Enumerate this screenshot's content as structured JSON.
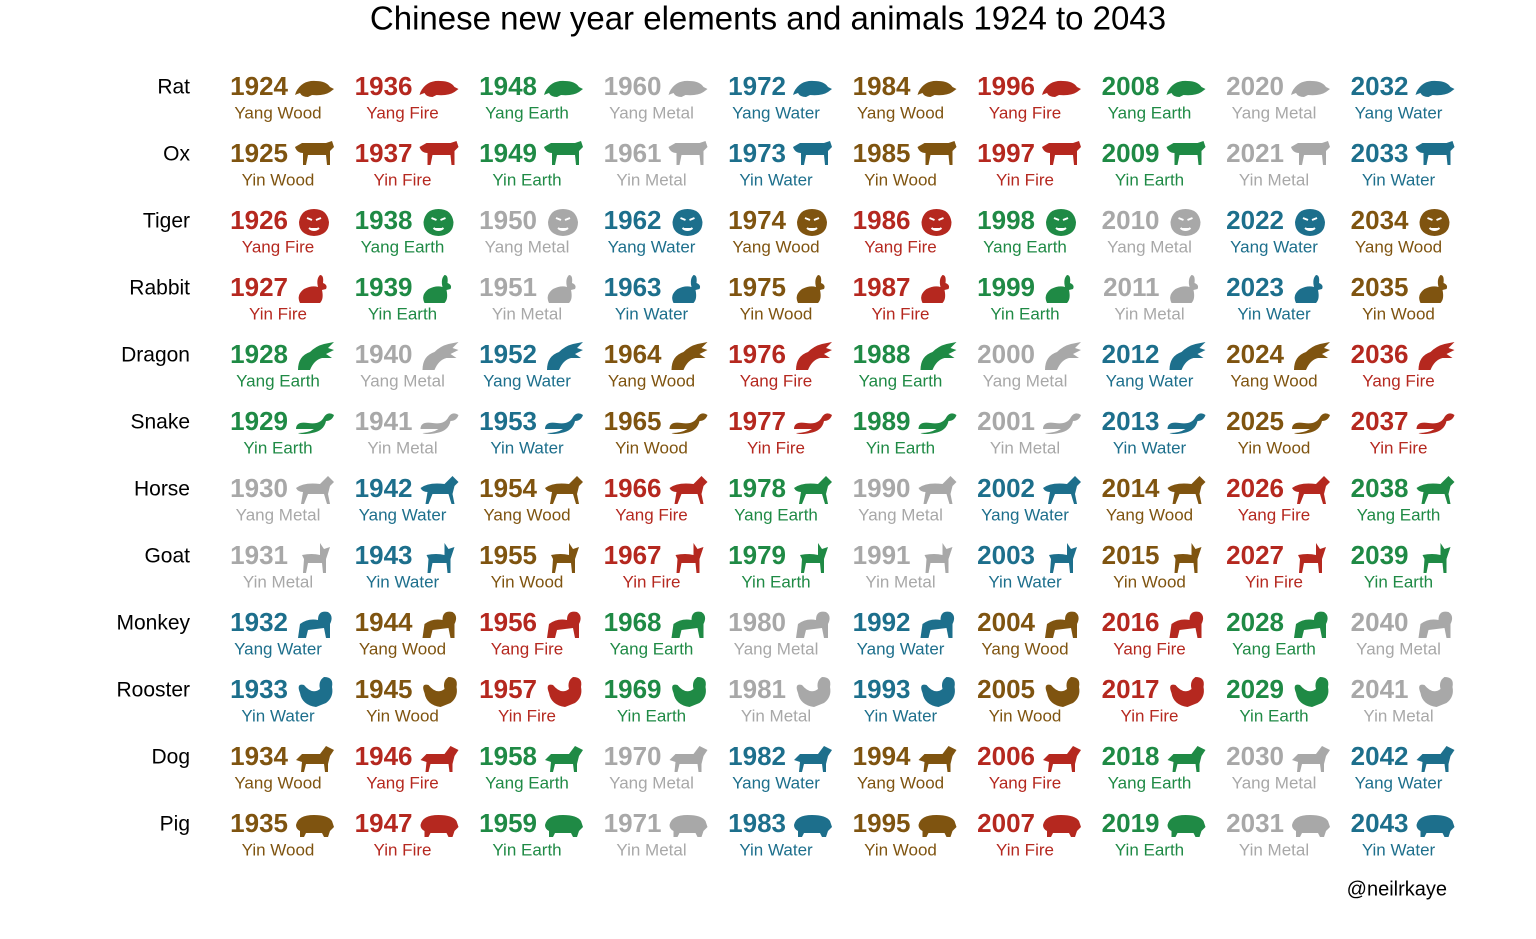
{
  "title": "Chinese new year elements and animals 1924 to 2043",
  "credit": "@neilrkaye",
  "rows": [
    {
      "animal": "Rat",
      "cells": [
        {
          "year": 1924,
          "label": "Yang Wood",
          "color": "#7f5410"
        },
        {
          "year": 1936,
          "label": "Yang Fire",
          "color": "#b5281f"
        },
        {
          "year": 1948,
          "label": "Yang Earth",
          "color": "#1f8a45"
        },
        {
          "year": 1960,
          "label": "Yang Metal",
          "color": "#a8a8a8"
        },
        {
          "year": 1972,
          "label": "Yang Water",
          "color": "#1d6f8c"
        },
        {
          "year": 1984,
          "label": "Yang Wood",
          "color": "#7f5410"
        },
        {
          "year": 1996,
          "label": "Yang Fire",
          "color": "#b5281f"
        },
        {
          "year": 2008,
          "label": "Yang Earth",
          "color": "#1f8a45"
        },
        {
          "year": 2020,
          "label": "Yang Metal",
          "color": "#a8a8a8"
        },
        {
          "year": 2032,
          "label": "Yang Water",
          "color": "#1d6f8c"
        }
      ]
    },
    {
      "animal": "Ox",
      "cells": [
        {
          "year": 1925,
          "label": "Yin Wood",
          "color": "#7f5410"
        },
        {
          "year": 1937,
          "label": "Yin Fire",
          "color": "#b5281f"
        },
        {
          "year": 1949,
          "label": "Yin Earth",
          "color": "#1f8a45"
        },
        {
          "year": 1961,
          "label": "Yin Metal",
          "color": "#a8a8a8"
        },
        {
          "year": 1973,
          "label": "Yin Water",
          "color": "#1d6f8c"
        },
        {
          "year": 1985,
          "label": "Yin Wood",
          "color": "#7f5410"
        },
        {
          "year": 1997,
          "label": "Yin Fire",
          "color": "#b5281f"
        },
        {
          "year": 2009,
          "label": "Yin Earth",
          "color": "#1f8a45"
        },
        {
          "year": 2021,
          "label": "Yin Metal",
          "color": "#a8a8a8"
        },
        {
          "year": 2033,
          "label": "Yin Water",
          "color": "#1d6f8c"
        }
      ]
    },
    {
      "animal": "Tiger",
      "cells": [
        {
          "year": 1926,
          "label": "Yang Fire",
          "color": "#b5281f"
        },
        {
          "year": 1938,
          "label": "Yang Earth",
          "color": "#1f8a45"
        },
        {
          "year": 1950,
          "label": "Yang Metal",
          "color": "#a8a8a8"
        },
        {
          "year": 1962,
          "label": "Yang Water",
          "color": "#1d6f8c"
        },
        {
          "year": 1974,
          "label": "Yang Wood",
          "color": "#7f5410"
        },
        {
          "year": 1986,
          "label": "Yang Fire",
          "color": "#b5281f"
        },
        {
          "year": 1998,
          "label": "Yang Earth",
          "color": "#1f8a45"
        },
        {
          "year": 2010,
          "label": "Yang Metal",
          "color": "#a8a8a8"
        },
        {
          "year": 2022,
          "label": "Yang Water",
          "color": "#1d6f8c"
        },
        {
          "year": 2034,
          "label": "Yang Wood",
          "color": "#7f5410"
        }
      ]
    },
    {
      "animal": "Rabbit",
      "cells": [
        {
          "year": 1927,
          "label": "Yin Fire",
          "color": "#b5281f"
        },
        {
          "year": 1939,
          "label": "Yin Earth",
          "color": "#1f8a45"
        },
        {
          "year": 1951,
          "label": "Yin Metal",
          "color": "#a8a8a8"
        },
        {
          "year": 1963,
          "label": "Yin Water",
          "color": "#1d6f8c"
        },
        {
          "year": 1975,
          "label": "Yin Wood",
          "color": "#7f5410"
        },
        {
          "year": 1987,
          "label": "Yin Fire",
          "color": "#b5281f"
        },
        {
          "year": 1999,
          "label": "Yin Earth",
          "color": "#1f8a45"
        },
        {
          "year": 2011,
          "label": "Yin Metal",
          "color": "#a8a8a8"
        },
        {
          "year": 2023,
          "label": "Yin Water",
          "color": "#1d6f8c"
        },
        {
          "year": 2035,
          "label": "Yin Wood",
          "color": "#7f5410"
        }
      ]
    },
    {
      "animal": "Dragon",
      "cells": [
        {
          "year": 1928,
          "label": "Yang Earth",
          "color": "#1f8a45"
        },
        {
          "year": 1940,
          "label": "Yang Metal",
          "color": "#a8a8a8"
        },
        {
          "year": 1952,
          "label": "Yang Water",
          "color": "#1d6f8c"
        },
        {
          "year": 1964,
          "label": "Yang Wood",
          "color": "#7f5410"
        },
        {
          "year": 1976,
          "label": "Yang Fire",
          "color": "#b5281f"
        },
        {
          "year": 1988,
          "label": "Yang Earth",
          "color": "#1f8a45"
        },
        {
          "year": 2000,
          "label": "Yang Metal",
          "color": "#a8a8a8"
        },
        {
          "year": 2012,
          "label": "Yang Water",
          "color": "#1d6f8c"
        },
        {
          "year": 2024,
          "label": "Yang Wood",
          "color": "#7f5410"
        },
        {
          "year": 2036,
          "label": "Yang Fire",
          "color": "#b5281f"
        }
      ]
    },
    {
      "animal": "Snake",
      "cells": [
        {
          "year": 1929,
          "label": "Yin Earth",
          "color": "#1f8a45"
        },
        {
          "year": 1941,
          "label": "Yin Metal",
          "color": "#a8a8a8"
        },
        {
          "year": 1953,
          "label": "Yin Water",
          "color": "#1d6f8c"
        },
        {
          "year": 1965,
          "label": "Yin Wood",
          "color": "#7f5410"
        },
        {
          "year": 1977,
          "label": "Yin Fire",
          "color": "#b5281f"
        },
        {
          "year": 1989,
          "label": "Yin Earth",
          "color": "#1f8a45"
        },
        {
          "year": 2001,
          "label": "Yin Metal",
          "color": "#a8a8a8"
        },
        {
          "year": 2013,
          "label": "Yin Water",
          "color": "#1d6f8c"
        },
        {
          "year": 2025,
          "label": "Yin Wood",
          "color": "#7f5410"
        },
        {
          "year": 2037,
          "label": "Yin Fire",
          "color": "#b5281f"
        }
      ]
    },
    {
      "animal": "Horse",
      "cells": [
        {
          "year": 1930,
          "label": "Yang Metal",
          "color": "#a8a8a8"
        },
        {
          "year": 1942,
          "label": "Yang Water",
          "color": "#1d6f8c"
        },
        {
          "year": 1954,
          "label": "Yang Wood",
          "color": "#7f5410"
        },
        {
          "year": 1966,
          "label": "Yang Fire",
          "color": "#b5281f"
        },
        {
          "year": 1978,
          "label": "Yang Earth",
          "color": "#1f8a45"
        },
        {
          "year": 1990,
          "label": "Yang Metal",
          "color": "#a8a8a8"
        },
        {
          "year": 2002,
          "label": "Yang Water",
          "color": "#1d6f8c"
        },
        {
          "year": 2014,
          "label": "Yang Wood",
          "color": "#7f5410"
        },
        {
          "year": 2026,
          "label": "Yang Fire",
          "color": "#b5281f"
        },
        {
          "year": 2038,
          "label": "Yang Earth",
          "color": "#1f8a45"
        }
      ]
    },
    {
      "animal": "Goat",
      "cells": [
        {
          "year": 1931,
          "label": "Yin Metal",
          "color": "#a8a8a8"
        },
        {
          "year": 1943,
          "label": "Yin Water",
          "color": "#1d6f8c"
        },
        {
          "year": 1955,
          "label": "Yin Wood",
          "color": "#7f5410"
        },
        {
          "year": 1967,
          "label": "Yin Fire",
          "color": "#b5281f"
        },
        {
          "year": 1979,
          "label": "Yin Earth",
          "color": "#1f8a45"
        },
        {
          "year": 1991,
          "label": "Yin Metal",
          "color": "#a8a8a8"
        },
        {
          "year": 2003,
          "label": "Yin Water",
          "color": "#1d6f8c"
        },
        {
          "year": 2015,
          "label": "Yin Wood",
          "color": "#7f5410"
        },
        {
          "year": 2027,
          "label": "Yin Fire",
          "color": "#b5281f"
        },
        {
          "year": 2039,
          "label": "Yin Earth",
          "color": "#1f8a45"
        }
      ]
    },
    {
      "animal": "Monkey",
      "cells": [
        {
          "year": 1932,
          "label": "Yang Water",
          "color": "#1d6f8c"
        },
        {
          "year": 1944,
          "label": "Yang Wood",
          "color": "#7f5410"
        },
        {
          "year": 1956,
          "label": "Yang Fire",
          "color": "#b5281f"
        },
        {
          "year": 1968,
          "label": "Yang Earth",
          "color": "#1f8a45"
        },
        {
          "year": 1980,
          "label": "Yang Metal",
          "color": "#a8a8a8"
        },
        {
          "year": 1992,
          "label": "Yang Water",
          "color": "#1d6f8c"
        },
        {
          "year": 2004,
          "label": "Yang Wood",
          "color": "#7f5410"
        },
        {
          "year": 2016,
          "label": "Yang Fire",
          "color": "#b5281f"
        },
        {
          "year": 2028,
          "label": "Yang Earth",
          "color": "#1f8a45"
        },
        {
          "year": 2040,
          "label": "Yang Metal",
          "color": "#a8a8a8"
        }
      ]
    },
    {
      "animal": "Rooster",
      "cells": [
        {
          "year": 1933,
          "label": "Yin Water",
          "color": "#1d6f8c"
        },
        {
          "year": 1945,
          "label": "Yin Wood",
          "color": "#7f5410"
        },
        {
          "year": 1957,
          "label": "Yin Fire",
          "color": "#b5281f"
        },
        {
          "year": 1969,
          "label": "Yin Earth",
          "color": "#1f8a45"
        },
        {
          "year": 1981,
          "label": "Yin Metal",
          "color": "#a8a8a8"
        },
        {
          "year": 1993,
          "label": "Yin Water",
          "color": "#1d6f8c"
        },
        {
          "year": 2005,
          "label": "Yin Wood",
          "color": "#7f5410"
        },
        {
          "year": 2017,
          "label": "Yin Fire",
          "color": "#b5281f"
        },
        {
          "year": 2029,
          "label": "Yin Earth",
          "color": "#1f8a45"
        },
        {
          "year": 2041,
          "label": "Yin Metal",
          "color": "#a8a8a8"
        }
      ]
    },
    {
      "animal": "Dog",
      "cells": [
        {
          "year": 1934,
          "label": "Yang Wood",
          "color": "#7f5410"
        },
        {
          "year": 1946,
          "label": "Yang Fire",
          "color": "#b5281f"
        },
        {
          "year": 1958,
          "label": "Yang Earth",
          "color": "#1f8a45"
        },
        {
          "year": 1970,
          "label": "Yang Metal",
          "color": "#a8a8a8"
        },
        {
          "year": 1982,
          "label": "Yang Water",
          "color": "#1d6f8c"
        },
        {
          "year": 1994,
          "label": "Yang Wood",
          "color": "#7f5410"
        },
        {
          "year": 2006,
          "label": "Yang Fire",
          "color": "#b5281f"
        },
        {
          "year": 2018,
          "label": "Yang Earth",
          "color": "#1f8a45"
        },
        {
          "year": 2030,
          "label": "Yang Metal",
          "color": "#a8a8a8"
        },
        {
          "year": 2042,
          "label": "Yang Water",
          "color": "#1d6f8c"
        }
      ]
    },
    {
      "animal": "Pig",
      "cells": [
        {
          "year": 1935,
          "label": "Yin Wood",
          "color": "#7f5410"
        },
        {
          "year": 1947,
          "label": "Yin Fire",
          "color": "#b5281f"
        },
        {
          "year": 1959,
          "label": "Yin Earth",
          "color": "#1f8a45"
        },
        {
          "year": 1971,
          "label": "Yin Metal",
          "color": "#a8a8a8"
        },
        {
          "year": 1983,
          "label": "Yin Water",
          "color": "#1d6f8c"
        },
        {
          "year": 1995,
          "label": "Yin Wood",
          "color": "#7f5410"
        },
        {
          "year": 2007,
          "label": "Yin Fire",
          "color": "#b5281f"
        },
        {
          "year": 2019,
          "label": "Yin Earth",
          "color": "#1f8a45"
        },
        {
          "year": 2031,
          "label": "Yin Metal",
          "color": "#a8a8a8"
        },
        {
          "year": 2043,
          "label": "Yin Water",
          "color": "#1d6f8c"
        }
      ]
    }
  ]
}
